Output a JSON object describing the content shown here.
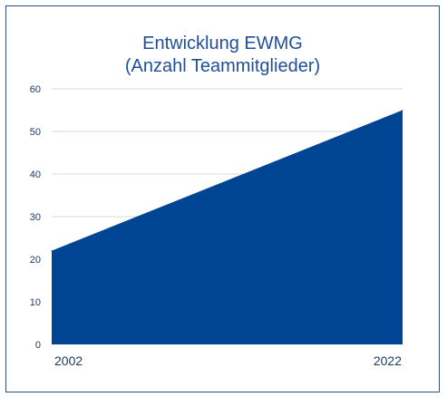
{
  "chart_data": {
    "type": "area",
    "title_line1": "Entwicklung EWMG",
    "title_line2": "(Anzahl Teammitglieder)",
    "categories": [
      "2002",
      "2022"
    ],
    "values": [
      22,
      55
    ],
    "ylim": [
      0,
      60
    ],
    "yticks": [
      0,
      10,
      20,
      30,
      40,
      50,
      60
    ],
    "grid": true,
    "legend": "none",
    "fill_color": "#004494",
    "grid_color": "#d9d9d9",
    "title_color": "#1f4e9a"
  }
}
